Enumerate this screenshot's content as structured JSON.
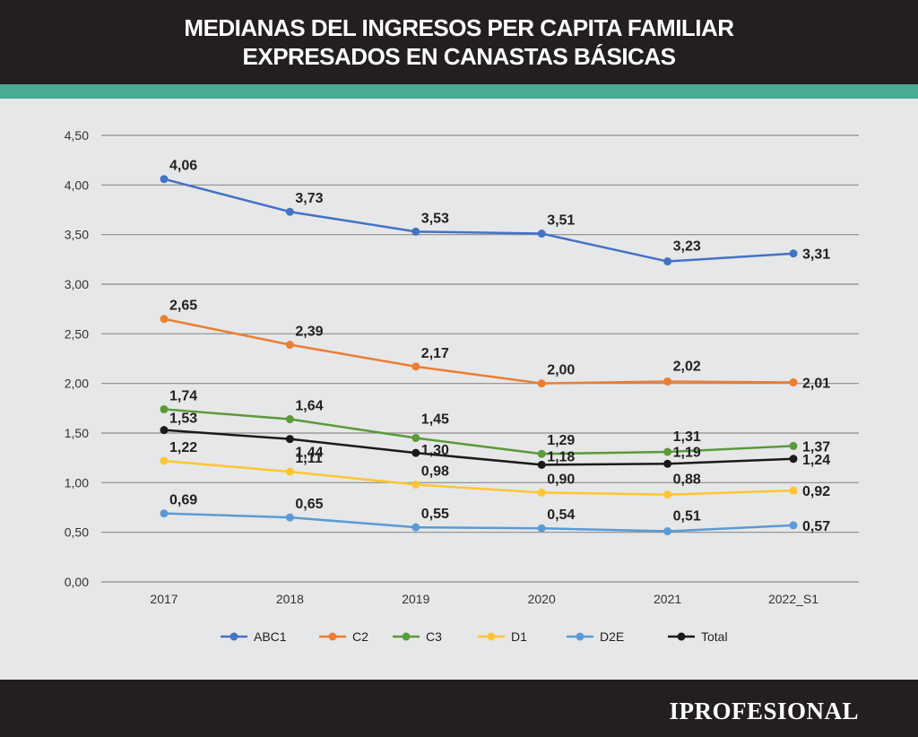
{
  "header": {
    "title_line1": "MEDIANAS DEL INGRESOS PER CAPITA FAMILIAR",
    "title_line2": "EXPRESADOS EN CANASTAS BÁSICAS"
  },
  "footer": {
    "brand": "IPROFESIONAL"
  },
  "colors": {
    "header_bg": "#231f20",
    "accent": "#4aab94",
    "background": "#e6e7e8"
  },
  "chart_data": {
    "type": "line",
    "title": "MEDIANAS DEL INGRESOS PER CAPITA FAMILIAR EXPRESADOS EN CANASTAS BÁSICAS",
    "xlabel": "",
    "ylabel": "",
    "categories": [
      "2017",
      "2018",
      "2019",
      "2020",
      "2021",
      "2022_S1"
    ],
    "ylim": [
      0,
      4.5
    ],
    "yticks": [
      "0,00",
      "0,50",
      "1,00",
      "1,50",
      "2,00",
      "2,50",
      "3,00",
      "3,50",
      "4,00",
      "4,50"
    ],
    "grid": true,
    "legend_position": "bottom",
    "series": [
      {
        "name": "ABC1",
        "color": "#4472c4",
        "values": [
          4.06,
          3.73,
          3.53,
          3.51,
          3.23,
          3.31
        ],
        "labels": [
          "4,06",
          "3,73",
          "3,53",
          "3,51",
          "3,23",
          "3,31"
        ]
      },
      {
        "name": "C2",
        "color": "#ed7d31",
        "values": [
          2.65,
          2.39,
          2.17,
          2.0,
          2.02,
          2.01
        ],
        "labels": [
          "2,65",
          "2,39",
          "2,17",
          "2,00",
          "2,02",
          "2,01"
        ]
      },
      {
        "name": "C3",
        "color": "#5a9a3a",
        "values": [
          1.74,
          1.64,
          1.45,
          1.29,
          1.31,
          1.37
        ],
        "labels": [
          "1,74",
          "1,64",
          "1,45",
          "1,29",
          "1,31",
          "1,37"
        ]
      },
      {
        "name": "D1",
        "color": "#ffc533",
        "values": [
          1.22,
          1.11,
          0.98,
          0.9,
          0.88,
          0.92
        ],
        "labels": [
          "1,22",
          "1,11",
          "0,98",
          "0,90",
          "0,88",
          "0,92"
        ]
      },
      {
        "name": "D2E",
        "color": "#5b9bd5",
        "values": [
          0.69,
          0.65,
          0.55,
          0.54,
          0.51,
          0.57
        ],
        "labels": [
          "0,69",
          "0,65",
          "0,55",
          "0,54",
          "0,51",
          "0,57"
        ]
      },
      {
        "name": "Total",
        "color": "#1a1a1a",
        "values": [
          1.53,
          1.44,
          1.3,
          1.18,
          1.19,
          1.24
        ],
        "labels": [
          "1,53",
          "1,44",
          "1,30",
          "1,18",
          "1,19",
          "1,24"
        ]
      }
    ]
  }
}
